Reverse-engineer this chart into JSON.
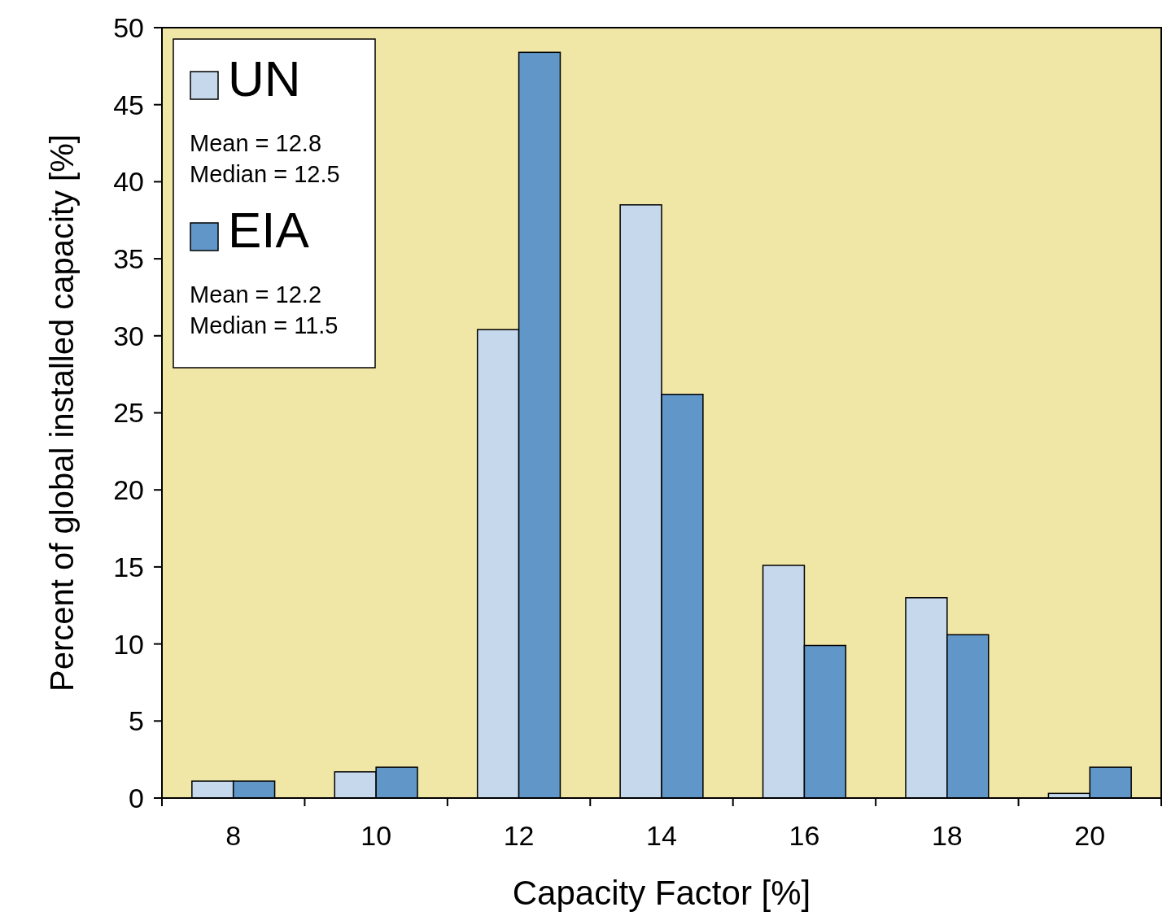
{
  "chart_data": {
    "type": "bar",
    "xlabel": "Capacity Factor [%]",
    "ylabel": "Percent of global installed capacity [%]",
    "categories": [
      "8",
      "10",
      "12",
      "14",
      "16",
      "18",
      "20"
    ],
    "series": [
      {
        "name": "UN",
        "color": "#c5d8ec",
        "values": [
          1.1,
          1.7,
          30.4,
          38.5,
          15.1,
          13.0,
          0.3
        ]
      },
      {
        "name": "EIA",
        "color": "#6096c8",
        "values": [
          1.1,
          2.0,
          48.4,
          26.2,
          9.9,
          10.6,
          2.0
        ]
      }
    ],
    "ylim": [
      0,
      50
    ],
    "yticks": [
      0,
      5,
      10,
      15,
      20,
      25,
      30,
      35,
      40,
      45,
      50
    ],
    "annotations": [
      "Mean = 12.8",
      "Median = 12.5",
      "Mean = 12.2",
      "Median = 11.5"
    ],
    "grid": false,
    "legend": "top left"
  }
}
